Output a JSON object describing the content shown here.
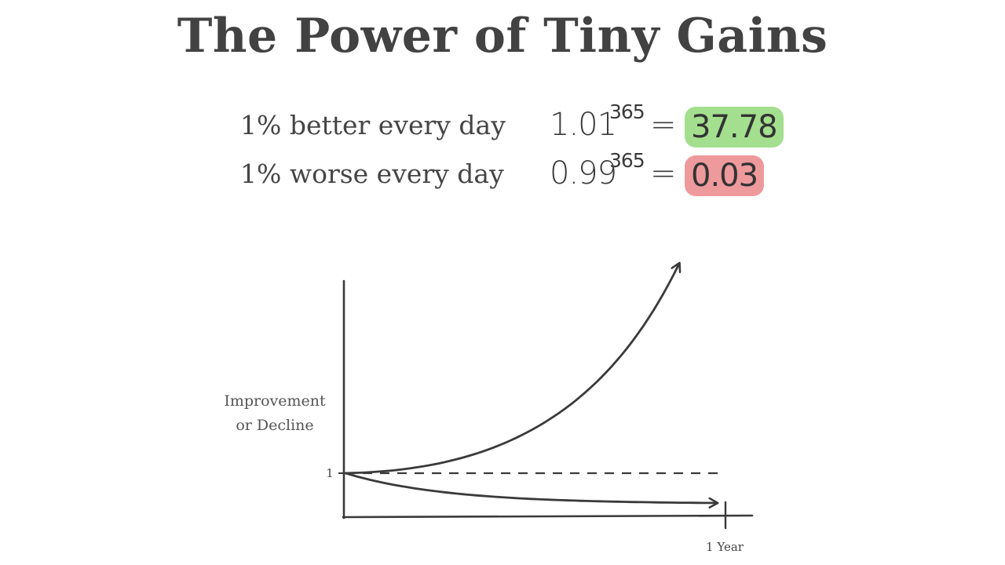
{
  "title": "The Power of Tiny Gains",
  "equations": [
    {
      "label": "1% better every day",
      "base": "1.01",
      "exponent": "365",
      "sign": "=",
      "result": "37.78",
      "highlight_color": "#a3df8e"
    },
    {
      "label": "1% worse every day",
      "base": "0.99",
      "exponent": "365",
      "sign": "=",
      "result": "0.03",
      "highlight_color": "#ee9a9c"
    }
  ],
  "chart_data": {
    "type": "line",
    "ylabel_lines": [
      "Improvement",
      "or Decline"
    ],
    "y_tick_label": "1",
    "x_tick_label": "1 Year",
    "series": [
      {
        "rate": 1.01
      },
      {
        "rate": 0.99
      }
    ],
    "baseline_value": 1,
    "colors": {
      "line": "#3a3a3a"
    }
  }
}
